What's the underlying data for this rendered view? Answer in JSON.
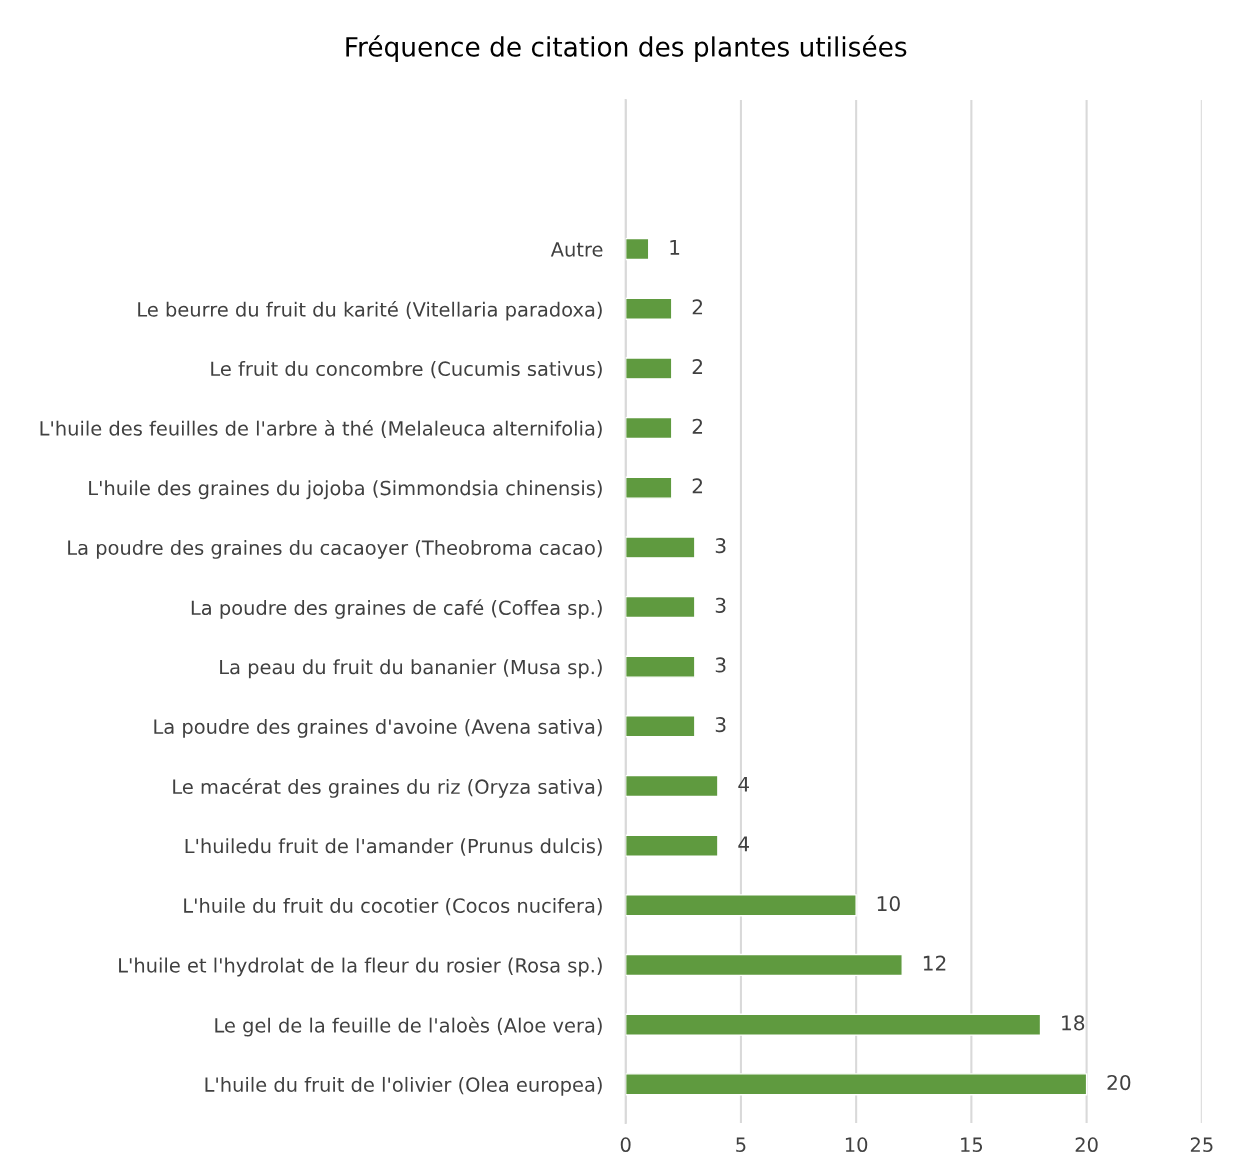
{
  "chart_data": {
    "type": "bar",
    "orientation": "horizontal",
    "title": "Fréquence de citation des plantes utilisées",
    "categories": [
      "Autre",
      "Le beurre du fruit du karité (Vitellaria paradoxa)",
      "Le fruit du concombre (Cucumis sativus)",
      "L'huile des feuilles de l'arbre à thé (Melaleuca alternifolia)",
      "L'huile des graines du jojoba (Simmondsia chinensis)",
      "La poudre des graines du cacaoyer (Theobroma cacao)",
      "La poudre des graines de café (Coffea sp.)",
      "La peau du fruit du bananier (Musa sp.)",
      "La poudre des graines d'avoine (Avena sativa)",
      "Le macérat des graines du riz (Oryza sativa)",
      "L'huiledu fruit de l'amander (Prunus dulcis)",
      "L'huile du fruit du cocotier (Cocos nucifera)",
      "L'huile et l'hydrolat de la fleur du rosier (Rosa sp.)",
      "Le gel de la feuille de l'aloès (Aloe vera)",
      "L'huile du fruit de l'olivier (Olea europea)"
    ],
    "values": [
      1,
      2,
      2,
      2,
      2,
      3,
      3,
      3,
      3,
      4,
      4,
      10,
      12,
      18,
      20
    ],
    "color": "#5f9a3f",
    "xlim": [
      0,
      25
    ],
    "xticks": [
      0,
      5,
      10,
      15,
      20,
      25
    ],
    "grid": "x",
    "data_labels": true
  }
}
